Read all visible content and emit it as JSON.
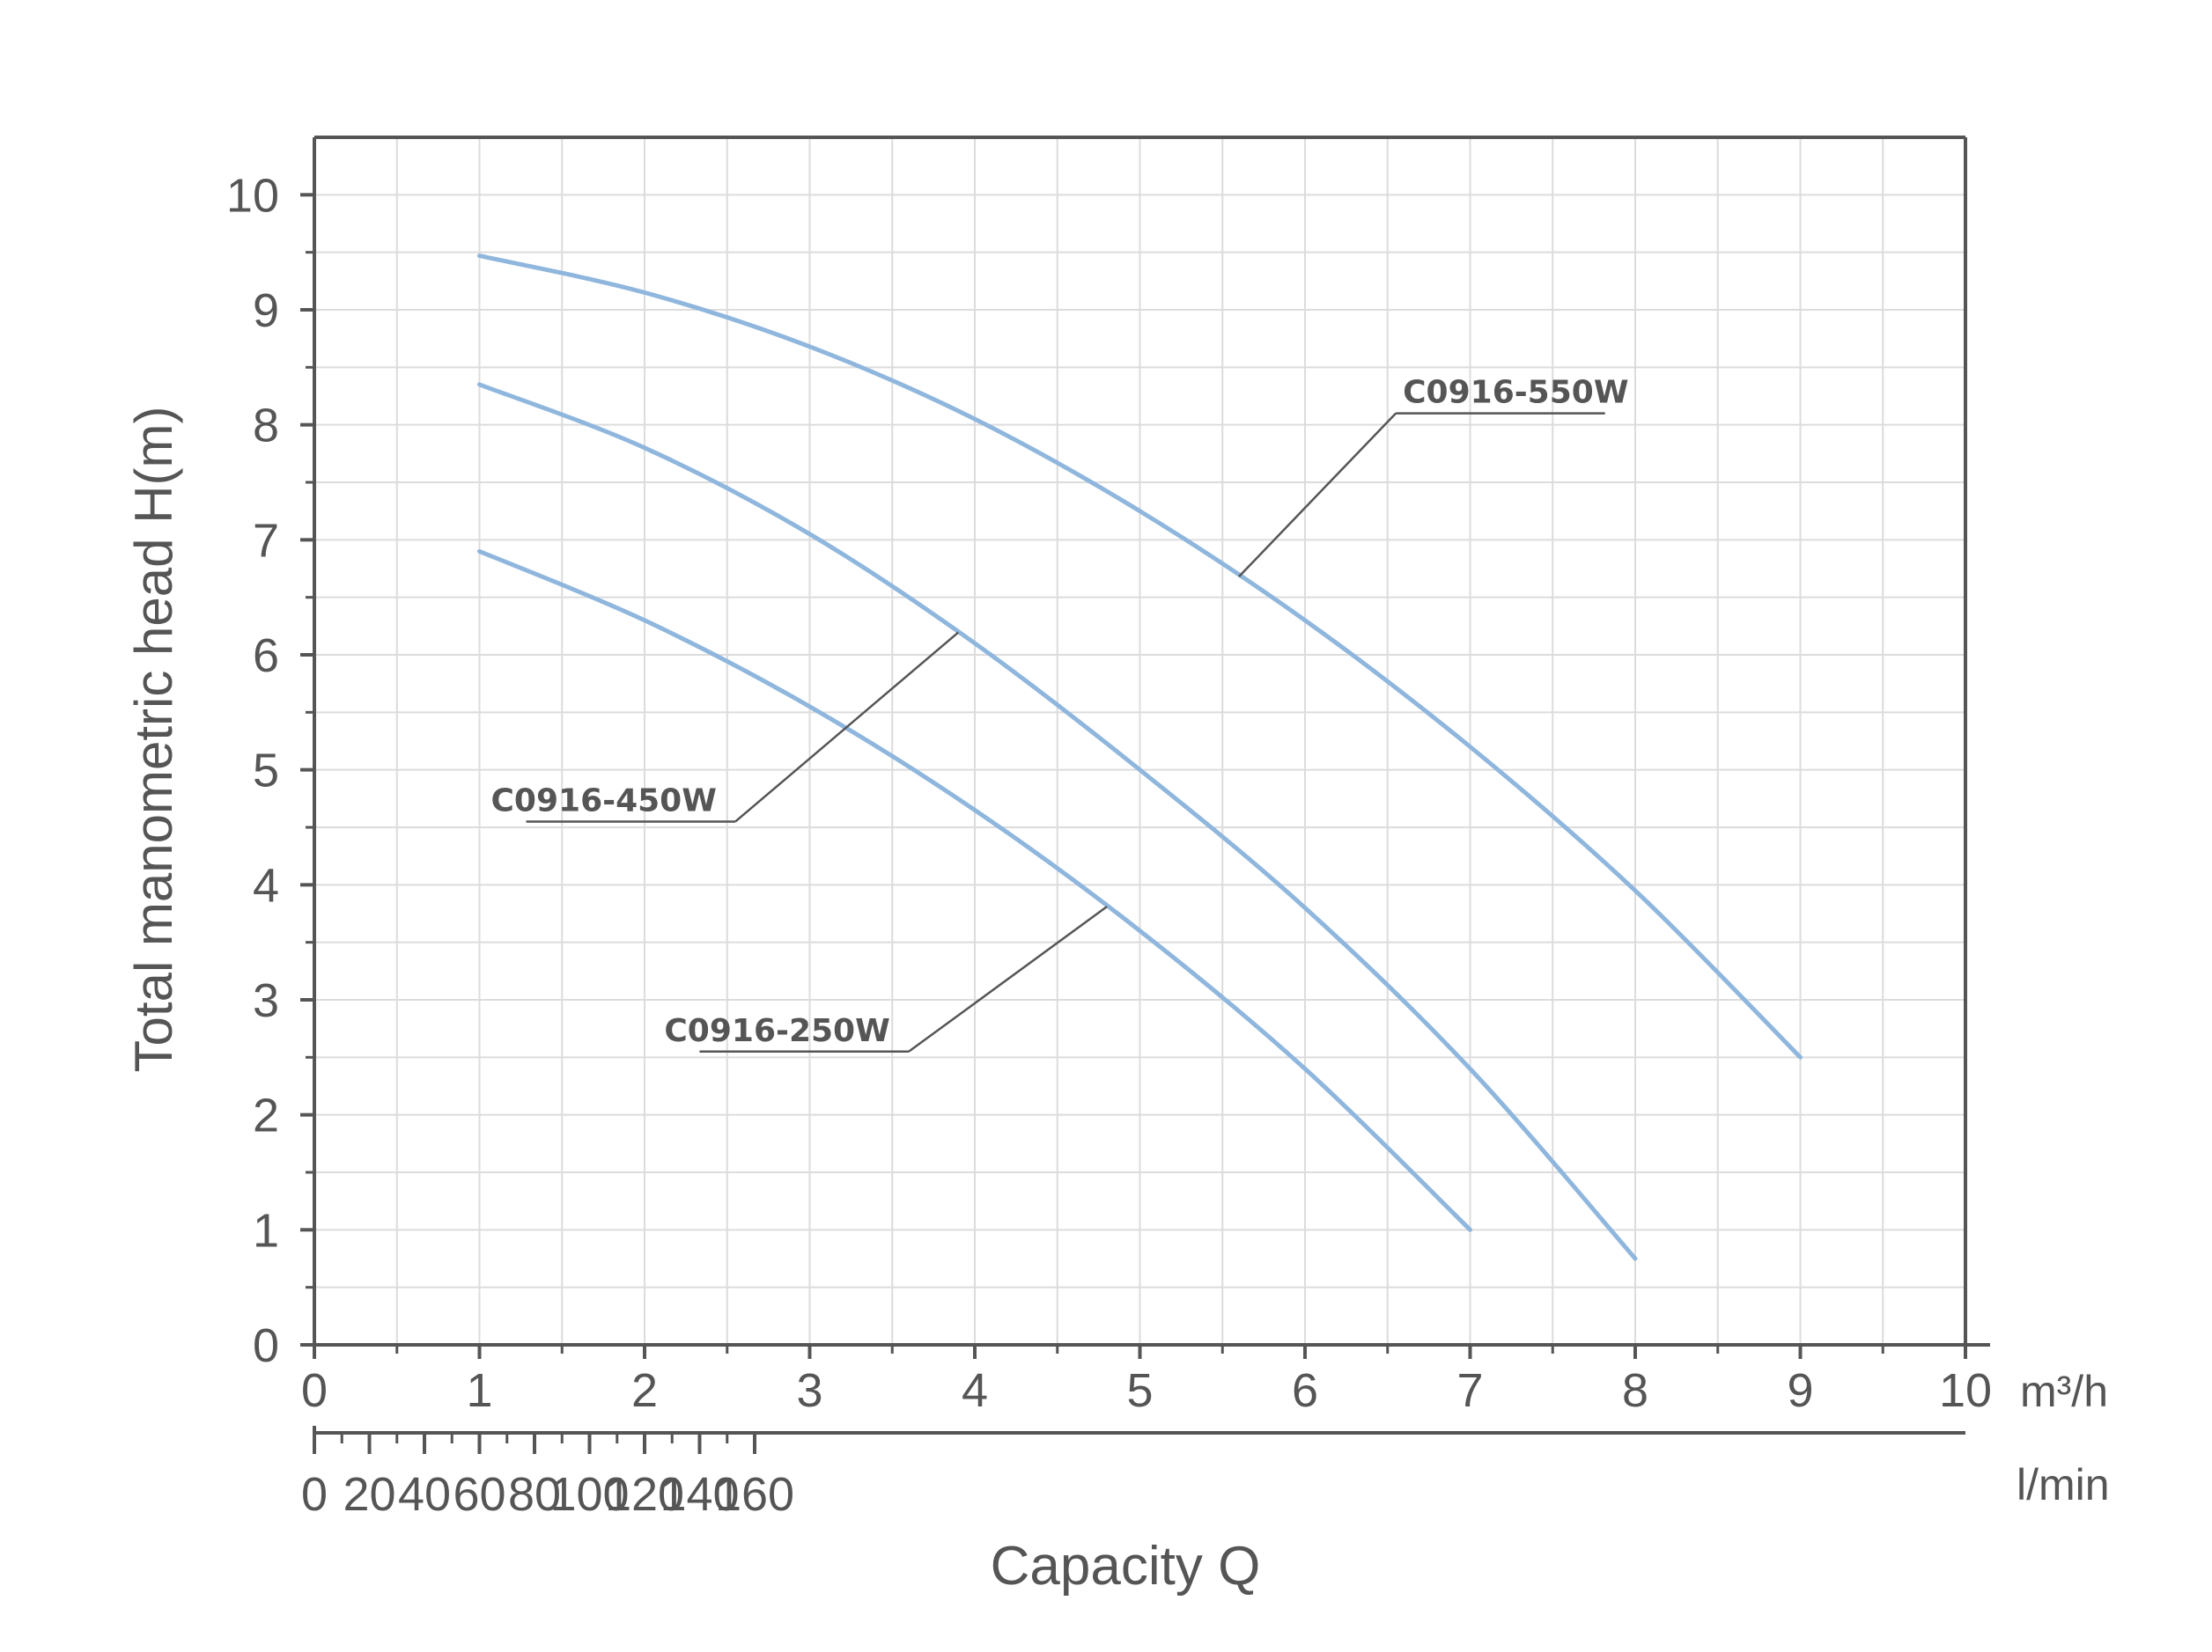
{
  "chart_data": {
    "type": "line",
    "ylabel": "Total manometric head H(m)",
    "xlabel": "Capacity Q",
    "x_unit_primary": "m³/h",
    "x_unit_secondary": "l/min",
    "xlim": [
      0,
      10
    ],
    "ylim": [
      0,
      10.5
    ],
    "x_ticks_primary": [
      "0",
      "1",
      "2",
      "3",
      "4",
      "5",
      "6",
      "7",
      "8",
      "9",
      "10"
    ],
    "x_ticks_secondary": [
      "0",
      "20",
      "40",
      "60",
      "80",
      "100",
      "120",
      "140",
      "160"
    ],
    "y_ticks": [
      "0",
      "1",
      "2",
      "3",
      "4",
      "5",
      "6",
      "7",
      "8",
      "9",
      "10"
    ],
    "grid": true,
    "colors": {
      "series": "#8fb6dd",
      "axis": "#555555",
      "grid": "#dcdcdc",
      "leader": "#555555"
    },
    "series": [
      {
        "name": "C0916-550W",
        "x": [
          1.0,
          2.0,
          3.0,
          4.0,
          5.0,
          6.0,
          7.0,
          8.0,
          9.0
        ],
        "y": [
          9.47,
          9.15,
          8.68,
          8.05,
          7.25,
          6.3,
          5.2,
          3.95,
          2.5
        ]
      },
      {
        "name": "C0916-450W",
        "x": [
          1.0,
          2.0,
          3.0,
          4.0,
          5.0,
          6.0,
          7.0,
          8.0
        ],
        "y": [
          8.35,
          7.8,
          7.05,
          6.1,
          5.0,
          3.8,
          2.4,
          0.75
        ]
      },
      {
        "name": "C0916-250W",
        "x": [
          1.0,
          2.0,
          3.0,
          4.0,
          5.0,
          6.0,
          7.0
        ],
        "y": [
          6.9,
          6.3,
          5.55,
          4.65,
          3.6,
          2.4,
          1.0
        ]
      }
    ],
    "annotations": [
      {
        "text": "C0916-550W",
        "series": "C0916-550W",
        "at_x": 5.6,
        "label_x": 6.55,
        "label_y": 8.1,
        "side": "right"
      },
      {
        "text": "C0916-450W",
        "series": "C0916-450W",
        "at_x": 3.9,
        "label_x": 2.55,
        "label_y": 4.55,
        "side": "left"
      },
      {
        "text": "C0916-250W",
        "series": "C0916-250W",
        "at_x": 4.8,
        "label_x": 3.6,
        "label_y": 2.55,
        "side": "left"
      }
    ]
  }
}
